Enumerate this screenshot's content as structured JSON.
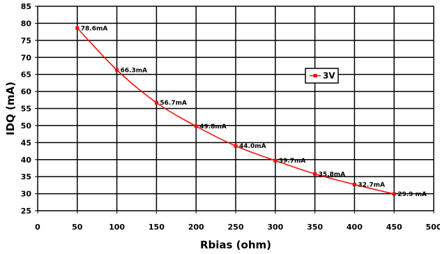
{
  "chart_data": {
    "type": "line",
    "xlabel": "Rbias (ohm)",
    "ylabel": "IDQ (mA)",
    "xlim": [
      0,
      500
    ],
    "ylim": [
      25,
      85
    ],
    "xticks": [
      0,
      50,
      100,
      150,
      200,
      250,
      300,
      350,
      400,
      450,
      500
    ],
    "yticks": [
      25,
      30,
      35,
      40,
      45,
      50,
      55,
      60,
      65,
      70,
      75,
      80,
      85
    ],
    "grid": true,
    "legend_position": "right",
    "series": [
      {
        "name": "3V",
        "color": "#ff0000",
        "x": [
          50,
          100,
          150,
          200,
          250,
          300,
          350,
          400,
          450
        ],
        "y": [
          78.6,
          66.3,
          56.7,
          49.8,
          44.0,
          39.7,
          35.8,
          32.7,
          29.9
        ],
        "labels": [
          "78.6mA",
          "66.3mA",
          "56.7mA",
          "49.8mA",
          "44.0mA",
          "39.7mA",
          "35.8mA",
          "32.7mA",
          "29.9 mA"
        ]
      }
    ]
  }
}
